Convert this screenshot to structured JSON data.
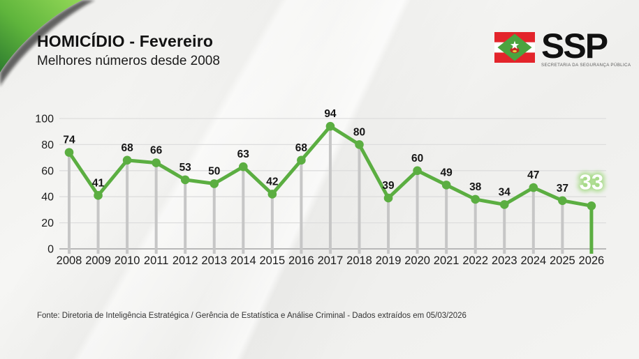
{
  "header": {
    "title": "HOMICÍDIO - Fevereiro",
    "subtitle": "Melhores números desde 2008"
  },
  "logo": {
    "acronym": "SSP",
    "caption": "SECRETARIA DA SEGURANÇA PÚBLICA",
    "flag_icon": "santa-catarina-flag-icon"
  },
  "footer": {
    "source": "Fonte: Diretoria de Inteligência Estratégica / Gerência de Estatística e Análise Criminal - Dados extraídos em 05/03/2026"
  },
  "colors": {
    "line_green": "#5BAE41",
    "marker_green": "#5BAE41",
    "stem_gray": "#c6c6c6",
    "gridline": "#dddddd",
    "baseline": "#b8b8b8",
    "label_dark": "#151515",
    "tick_dark": "#1c1c1c",
    "highlight_text": "#ffffff",
    "highlight_glow": "#9fd87d",
    "flag_red": "#e3242b",
    "flag_white": "#ffffff",
    "flag_diamond_green": "#4ba33f",
    "ribbon_green_dark": "#2e7d2f",
    "ribbon_green_light": "#93d857"
  },
  "chart_data": {
    "type": "line",
    "title": "HOMICÍDIO - Fevereiro",
    "subtitle": "Melhores números desde 2008",
    "categories": [
      "2008",
      "2009",
      "2010",
      "2011",
      "2012",
      "2013",
      "2014",
      "2015",
      "2016",
      "2017",
      "2018",
      "2019",
      "2020",
      "2021",
      "2022",
      "2023",
      "2024",
      "2025",
      "2026"
    ],
    "values": [
      74,
      41,
      68,
      66,
      53,
      50,
      63,
      42,
      68,
      94,
      80,
      39,
      60,
      49,
      38,
      34,
      47,
      37,
      33
    ],
    "highlight_index": 18,
    "highlight_value": 33,
    "ylim": [
      0,
      100
    ],
    "yticks": [
      0,
      20,
      40,
      60,
      80,
      100
    ],
    "grid": true,
    "legend": false,
    "marker_style": "circle",
    "stem_lines": true,
    "xlabel": "",
    "ylabel": ""
  }
}
